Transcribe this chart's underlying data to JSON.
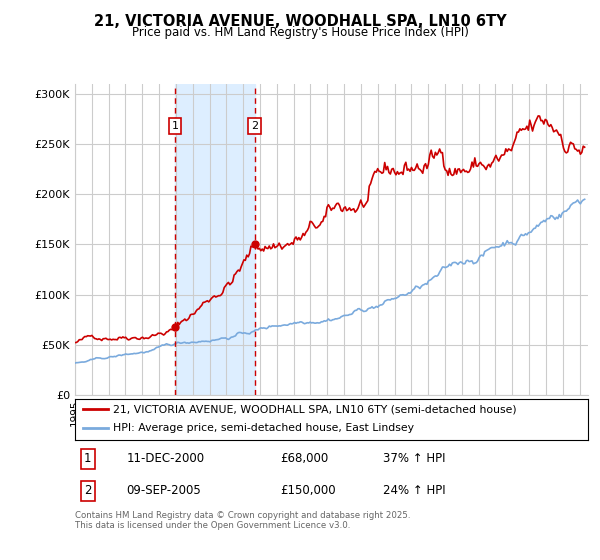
{
  "title_line1": "21, VICTORIA AVENUE, WOODHALL SPA, LN10 6TY",
  "title_line2": "Price paid vs. HM Land Registry's House Price Index (HPI)",
  "ylabel_ticks": [
    "£0",
    "£50K",
    "£100K",
    "£150K",
    "£200K",
    "£250K",
    "£300K"
  ],
  "ytick_vals": [
    0,
    50000,
    100000,
    150000,
    200000,
    250000,
    300000
  ],
  "ylim": [
    0,
    310000
  ],
  "xlim_start": 1995.0,
  "xlim_end": 2025.5,
  "sale1_x": 2000.94,
  "sale1_y": 68000,
  "sale2_x": 2005.69,
  "sale2_y": 150000,
  "sale1_label": "1",
  "sale2_label": "2",
  "shade_x1": 2000.94,
  "shade_x2": 2005.69,
  "legend_line1": "21, VICTORIA AVENUE, WOODHALL SPA, LN10 6TY (semi-detached house)",
  "legend_line2": "HPI: Average price, semi-detached house, East Lindsey",
  "table_row1": [
    "1",
    "11-DEC-2000",
    "£68,000",
    "37% ↑ HPI"
  ],
  "table_row2": [
    "2",
    "09-SEP-2005",
    "£150,000",
    "24% ↑ HPI"
  ],
  "footer": "Contains HM Land Registry data © Crown copyright and database right 2025.\nThis data is licensed under the Open Government Licence v3.0.",
  "line_color_red": "#cc0000",
  "line_color_blue": "#7aaadd",
  "shade_color": "#ddeeff",
  "grid_color": "#cccccc",
  "background_color": "#ffffff"
}
